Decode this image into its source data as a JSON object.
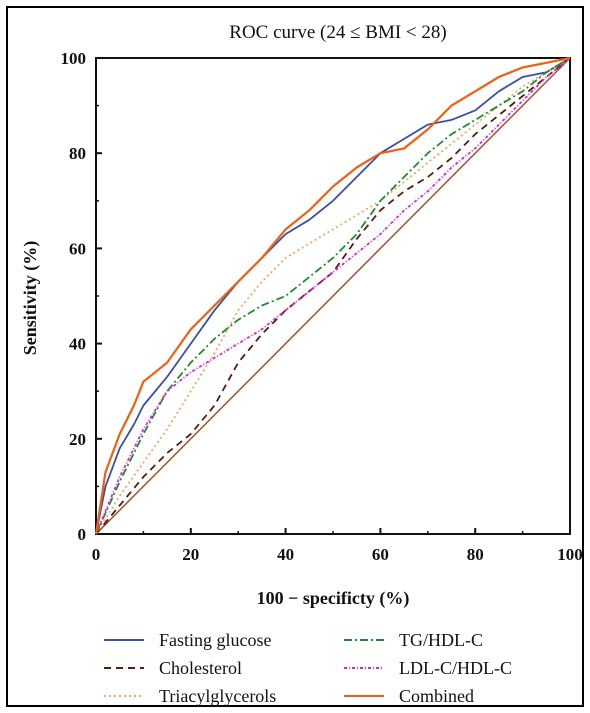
{
  "chart_data": {
    "type": "line",
    "title": "ROC curve (24 ≤ BMI < 28)",
    "xlabel": "100 − specificty (%)",
    "ylabel": "Sensitivity (%)",
    "xlim": [
      0,
      100
    ],
    "ylim": [
      0,
      100
    ],
    "xticks": [
      "0",
      "20",
      "40",
      "60",
      "80",
      "100"
    ],
    "yticks": [
      "0",
      "20",
      "40",
      "60",
      "80",
      "100"
    ],
    "grid": false,
    "legend_position": "bottom",
    "reference_line": {
      "x": [
        0,
        100
      ],
      "y": [
        0,
        100
      ],
      "color": "#a0522d"
    },
    "series": [
      {
        "name": "Fasting glucose",
        "color": "#3a4ea8",
        "dash": "solid",
        "x": [
          0,
          2,
          5,
          8,
          10,
          15,
          20,
          25,
          30,
          35,
          40,
          45,
          50,
          55,
          60,
          65,
          70,
          75,
          80,
          85,
          90,
          95,
          100
        ],
        "y": [
          0,
          10,
          18,
          23,
          27,
          33,
          40,
          47,
          53,
          58,
          63,
          66,
          70,
          75,
          80,
          83,
          86,
          87,
          89,
          93,
          96,
          97,
          100
        ]
      },
      {
        "name": "Cholesterol",
        "color": "#5a1a0a",
        "dash": "dashed",
        "x": [
          0,
          5,
          10,
          15,
          20,
          25,
          30,
          35,
          40,
          45,
          50,
          55,
          60,
          65,
          70,
          75,
          80,
          85,
          90,
          95,
          100
        ],
        "y": [
          0,
          6,
          12,
          17,
          21,
          27,
          36,
          42,
          47,
          51,
          55,
          62,
          68,
          72,
          75,
          79,
          84,
          88,
          92,
          96,
          100
        ]
      },
      {
        "name": "Triacylglycerols",
        "color": "#f4a460",
        "dash": "dotted",
        "x": [
          0,
          5,
          10,
          15,
          20,
          25,
          30,
          35,
          40,
          45,
          50,
          55,
          60,
          65,
          70,
          75,
          80,
          85,
          90,
          95,
          100
        ],
        "y": [
          0,
          8,
          15,
          22,
          30,
          38,
          47,
          53,
          58,
          61,
          64,
          67,
          70,
          74,
          78,
          82,
          86,
          90,
          94,
          97,
          100
        ]
      },
      {
        "name": "TG/HDL-C",
        "color": "#1e8c2e",
        "dash": "dashdot",
        "x": [
          0,
          5,
          10,
          15,
          20,
          25,
          30,
          35,
          40,
          45,
          50,
          55,
          60,
          65,
          70,
          75,
          80,
          85,
          90,
          95,
          100
        ],
        "y": [
          0,
          11,
          21,
          30,
          36,
          41,
          45,
          48,
          50,
          54,
          58,
          63,
          70,
          75,
          80,
          84,
          87,
          90,
          93,
          97,
          100
        ]
      },
      {
        "name": "LDL-C/HDL-C",
        "color": "#e020e0",
        "dash": "dashdotted",
        "x": [
          0,
          5,
          10,
          15,
          20,
          25,
          30,
          35,
          40,
          45,
          50,
          55,
          60,
          65,
          70,
          75,
          80,
          85,
          90,
          95,
          100
        ],
        "y": [
          0,
          12,
          22,
          30,
          34,
          37,
          40,
          43,
          47,
          51,
          55,
          59,
          63,
          68,
          72,
          77,
          81,
          86,
          91,
          96,
          100
        ]
      },
      {
        "name": "Combined",
        "color": "#f06010",
        "dash": "solid",
        "x": [
          0,
          2,
          5,
          8,
          10,
          15,
          20,
          25,
          30,
          35,
          40,
          45,
          50,
          55,
          60,
          65,
          70,
          75,
          80,
          85,
          90,
          95,
          100
        ],
        "y": [
          0,
          13,
          21,
          27,
          32,
          36,
          43,
          48,
          53,
          58,
          64,
          68,
          73,
          77,
          80,
          81,
          85,
          90,
          93,
          96,
          98,
          99,
          100
        ]
      }
    ]
  }
}
